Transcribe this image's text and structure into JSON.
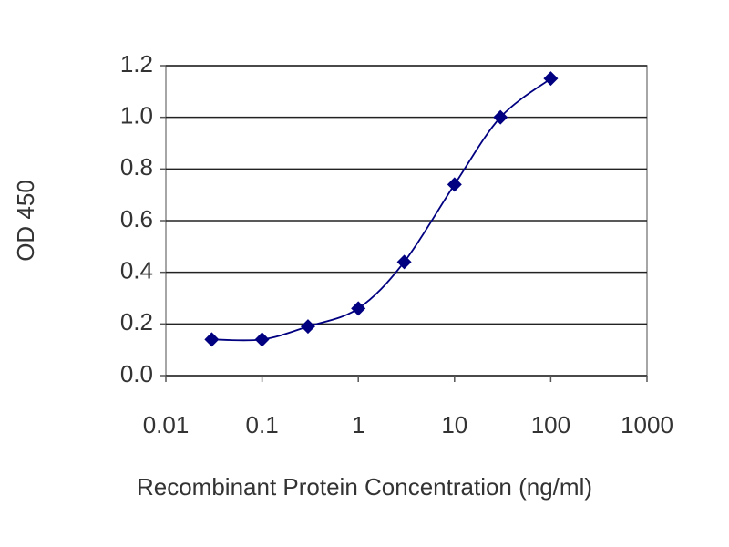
{
  "chart_data": {
    "type": "line",
    "x_label": "Recombinant Protein Concentration (ng/ml)",
    "y_label": "OD 450",
    "x": [
      0.03,
      0.1,
      0.3,
      1,
      3,
      10,
      30,
      100
    ],
    "values": [
      0.14,
      0.14,
      0.19,
      0.26,
      0.44,
      0.74,
      1.0,
      1.15
    ],
    "color": "#000080",
    "xscale": "log",
    "xlim": [
      0.01,
      1000
    ],
    "xticks": [
      0.01,
      0.1,
      1,
      10,
      100,
      1000
    ],
    "ylim": [
      0,
      1.2
    ],
    "yticks": [
      {
        "value": 0,
        "label": "0.0"
      },
      0.2,
      0.4,
      0.6,
      0.8,
      {
        "value": 1,
        "label": "1.0"
      },
      1.2
    ],
    "grid": true
  }
}
